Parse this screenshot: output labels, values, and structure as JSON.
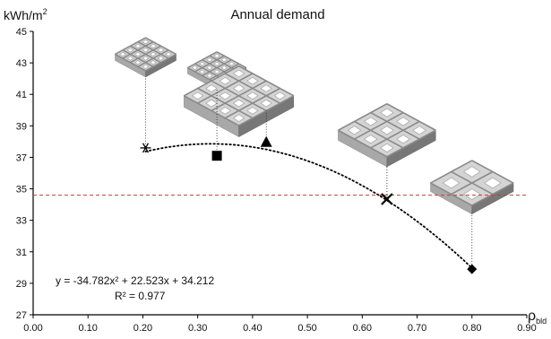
{
  "chart_data": {
    "type": "scatter",
    "title": "Annual demand",
    "ylabel": "kWh/m²",
    "ylabel_main": "kWh/m",
    "ylabel_sup": "2",
    "xlabel": "ρbld",
    "xlabel_main": "ρ",
    "xlabel_sub": "bld",
    "xlim": [
      0.0,
      0.9
    ],
    "ylim": [
      27,
      45
    ],
    "x_ticks": [
      "0.00",
      "0.10",
      "0.20",
      "0.30",
      "0.40",
      "0.50",
      "0.60",
      "0.70",
      "0.80",
      "0.90"
    ],
    "x_tick_values": [
      0,
      0.1,
      0.2,
      0.3,
      0.4,
      0.5,
      0.6,
      0.7,
      0.8,
      0.9
    ],
    "y_ticks": [
      "27",
      "29",
      "31",
      "33",
      "35",
      "37",
      "39",
      "41",
      "43",
      "45"
    ],
    "y_tick_values": [
      27,
      29,
      31,
      33,
      35,
      37,
      39,
      41,
      43,
      45
    ],
    "grid": false,
    "points": [
      {
        "x": 0.205,
        "y": 37.6,
        "marker": "asterisk"
      },
      {
        "x": 0.335,
        "y": 37.1,
        "marker": "square"
      },
      {
        "x": 0.425,
        "y": 37.95,
        "marker": "triangle"
      },
      {
        "x": 0.645,
        "y": 34.35,
        "marker": "x"
      },
      {
        "x": 0.8,
        "y": 29.9,
        "marker": "diamond"
      }
    ],
    "trendline": {
      "a": -34.782,
      "b": 22.523,
      "c": 34.212,
      "x_from": 0.205,
      "x_to": 0.8
    },
    "reference_line": {
      "y": 34.6,
      "color": "#e03030"
    },
    "equation": "y = -34.782x² + 22.523x + 34.212",
    "r_squared": "R² = 0.977",
    "leader_top_y": [
      42.0,
      41.3,
      40.0,
      36.4,
      33.5
    ],
    "thumbnails": [
      {
        "name": "block-model-1-icon",
        "grid": 4,
        "x": 0.205,
        "y_top": 44.6,
        "y_bottom": 42.1
      },
      {
        "name": "block-model-2-icon",
        "grid": 4,
        "x": 0.335,
        "y_top": 43.7,
        "y_bottom": 41.3
      },
      {
        "name": "block-model-3-icon",
        "grid": 4,
        "x": 0.375,
        "y_top": 42.8,
        "y_bottom": 38.3
      },
      {
        "name": "block-model-4-icon",
        "grid": 3,
        "x": 0.645,
        "y_top": 40.4,
        "y_bottom": 36.4
      },
      {
        "name": "block-model-5-icon",
        "grid": 2,
        "x": 0.8,
        "y_top": 36.8,
        "y_bottom": 33.4
      }
    ],
    "colors": {
      "axis": "#000000",
      "trend": "#000000",
      "reference": "#e03030",
      "block_light": "#d4d4d4",
      "block_mid": "#a8a8a8",
      "block_dark": "#777777"
    }
  }
}
